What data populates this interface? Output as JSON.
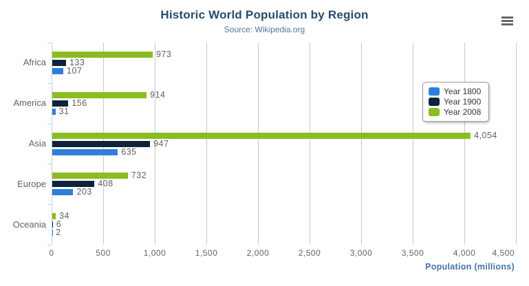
{
  "header": {
    "title": "Historic World Population by Region",
    "subtitle": "Source: Wikipedia.org"
  },
  "x_axis": {
    "title": "Population (millions)"
  },
  "legend": {
    "items": [
      {
        "label": "Year 1800",
        "color": "#2f7ed8"
      },
      {
        "label": "Year 1900",
        "color": "#0d233a"
      },
      {
        "label": "Year 2008",
        "color": "#8bbc21"
      }
    ]
  },
  "chart_data": {
    "type": "bar",
    "orientation": "horizontal",
    "title": "Historic World Population by Region",
    "subtitle": "Source: Wikipedia.org",
    "xlabel": "Population (millions)",
    "categories": [
      "Africa",
      "America",
      "Asia",
      "Europe",
      "Oceania"
    ],
    "series": [
      {
        "name": "Year 1800",
        "color": "#2f7ed8",
        "values": [
          107,
          31,
          635,
          203,
          2
        ]
      },
      {
        "name": "Year 1900",
        "color": "#0d233a",
        "values": [
          133,
          156,
          947,
          408,
          6
        ]
      },
      {
        "name": "Year 2008",
        "color": "#8bbc21",
        "values": [
          973,
          914,
          4054,
          732,
          34
        ]
      }
    ],
    "display_order_top_to_bottom": [
      "Year 2008",
      "Year 1900",
      "Year 1800"
    ],
    "xlim": [
      0,
      4500
    ],
    "ticks": [
      {
        "value": 0,
        "label": "0"
      },
      {
        "value": 500,
        "label": "500"
      },
      {
        "value": 1000,
        "label": "1,000"
      },
      {
        "value": 1500,
        "label": "1,500"
      },
      {
        "value": 2000,
        "label": "2,000"
      },
      {
        "value": 2500,
        "label": "2,500"
      },
      {
        "value": 3000,
        "label": "3,000"
      },
      {
        "value": 3500,
        "label": "3,500"
      },
      {
        "value": 4000,
        "label": "4,000"
      },
      {
        "value": 4500,
        "label": "4,500"
      }
    ],
    "grid": true,
    "legend_position": "right-middle",
    "data_labels": true
  },
  "colors": {
    "title": "#274b6d",
    "subtitle": "#4d759e",
    "axis_title": "#4572a7",
    "tick_label": "#606060",
    "grid_line": "#c8c8c8",
    "axis_line": "#c0d0e0",
    "legend_border": "#999999",
    "menu_icon": "#666666",
    "background": "#ffffff"
  }
}
